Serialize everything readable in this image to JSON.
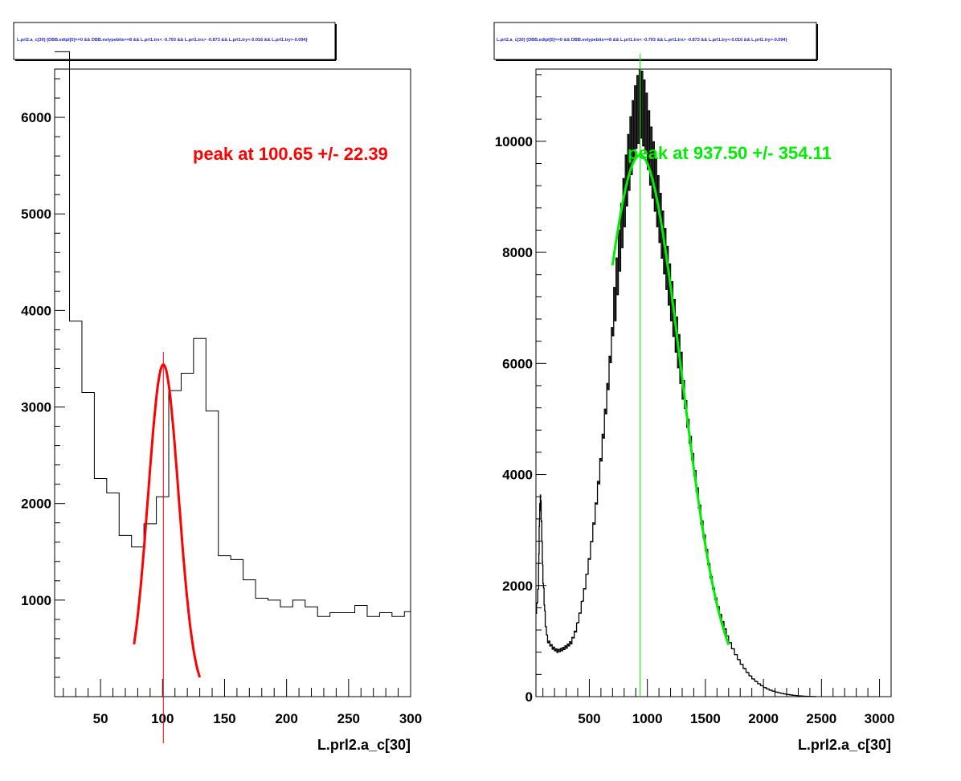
{
  "chart_data": [
    {
      "type": "histogram",
      "title": "L.prl2.a_c[30] {DBB.edtpl[0]==0 && DBB.evtypebits==8 &&  L.prl1.trx< -0.793 && L.prl1.trx> -0.873 && L.prl1.try<-0.016 && L.prl1.try>-0.094}",
      "xlabel": "L.prl2.a_c[30]",
      "ylabel": "",
      "xlim": [
        13,
        300
      ],
      "ylim": [
        0,
        6500
      ],
      "x_ticks": [
        50,
        100,
        150,
        200,
        250,
        300
      ],
      "y_ticks": [
        1000,
        2000,
        3000,
        4000,
        5000,
        6000
      ],
      "line_color": "#000000",
      "fit_color": "#ff0000",
      "bin_edges": [
        13,
        25,
        35,
        45,
        55,
        65,
        75,
        85,
        95,
        105,
        115,
        125,
        135,
        145,
        155,
        165,
        175,
        185,
        195,
        205,
        215,
        225,
        235,
        245,
        255,
        265,
        275,
        285,
        295,
        300
      ],
      "bin_values": [
        6680,
        3890,
        3150,
        2260,
        2110,
        1670,
        1550,
        1790,
        2070,
        3170,
        3350,
        3710,
        2960,
        1460,
        1420,
        1210,
        1020,
        1000,
        930,
        1000,
        930,
        830,
        870,
        870,
        945,
        830,
        870,
        830,
        880
      ],
      "fit": {
        "function": "gaussian",
        "x_range": [
          77,
          130
        ],
        "mean": 100.65,
        "sigma": 12.3,
        "amplitude": 3440,
        "label": "peak at 100.65 +/- 22.39"
      },
      "marker_line_x": 100.65,
      "annotation": "peak at 100.65 +/- 22.39"
    },
    {
      "type": "histogram",
      "title": "L.prl2.a_c[30] {DBB.edtpl[0]==0 && DBB.evtypebits==8 &&  L.prl1.trx< -0.793 && L.prl1.trx> -0.873 && L.prl1.try<-0.016 && L.prl1.try>-0.094}",
      "xlabel": "L.prl2.a_c[30]",
      "ylabel": "",
      "xlim": [
        40,
        3100
      ],
      "ylim": [
        0,
        11300
      ],
      "x_ticks": [
        500,
        1000,
        1500,
        2000,
        2500,
        3000
      ],
      "y_ticks": [
        0,
        2000,
        4000,
        6000,
        8000,
        10000
      ],
      "line_color": "#000000",
      "fit_color": "#00ee00",
      "profile_points": [
        [
          40,
          1500
        ],
        [
          60,
          2000
        ],
        [
          70,
          3300
        ],
        [
          80,
          3600
        ],
        [
          90,
          2900
        ],
        [
          100,
          2100
        ],
        [
          120,
          1300
        ],
        [
          140,
          1000
        ],
        [
          180,
          880
        ],
        [
          220,
          820
        ],
        [
          260,
          850
        ],
        [
          300,
          900
        ],
        [
          340,
          980
        ],
        [
          380,
          1200
        ],
        [
          420,
          1550
        ],
        [
          460,
          2000
        ],
        [
          500,
          2550
        ],
        [
          540,
          3200
        ],
        [
          580,
          3950
        ],
        [
          620,
          4800
        ],
        [
          660,
          5700
        ],
        [
          700,
          6700
        ],
        [
          740,
          7700
        ],
        [
          780,
          8600
        ],
        [
          820,
          9400
        ],
        [
          860,
          10000
        ],
        [
          900,
          10500
        ],
        [
          940,
          10700
        ],
        [
          980,
          10400
        ],
        [
          1020,
          9800
        ],
        [
          1060,
          9300
        ],
        [
          1100,
          8700
        ],
        [
          1140,
          8100
        ],
        [
          1180,
          7500
        ],
        [
          1220,
          6900
        ],
        [
          1260,
          6300
        ],
        [
          1300,
          5700
        ],
        [
          1340,
          5000
        ],
        [
          1380,
          4400
        ],
        [
          1420,
          3800
        ],
        [
          1460,
          3200
        ],
        [
          1500,
          2700
        ],
        [
          1540,
          2200
        ],
        [
          1580,
          1800
        ],
        [
          1620,
          1500
        ],
        [
          1660,
          1250
        ],
        [
          1700,
          1000
        ],
        [
          1750,
          780
        ],
        [
          1800,
          600
        ],
        [
          1850,
          450
        ],
        [
          1900,
          330
        ],
        [
          1950,
          240
        ],
        [
          2000,
          170
        ],
        [
          2050,
          120
        ],
        [
          2100,
          85
        ],
        [
          2150,
          60
        ],
        [
          2200,
          40
        ],
        [
          2250,
          25
        ],
        [
          2300,
          15
        ],
        [
          2350,
          8
        ],
        [
          2400,
          4
        ],
        [
          2450,
          0
        ]
      ],
      "fit": {
        "function": "gaussian",
        "x_range": [
          700,
          1700
        ],
        "mean": 937.5,
        "sigma": 352,
        "amplitude": 9750,
        "label": "peak at 937.50 +/- 354.11"
      },
      "marker_line_x": 937.5,
      "annotation": "peak at 937.50 +/- 354.11"
    }
  ]
}
